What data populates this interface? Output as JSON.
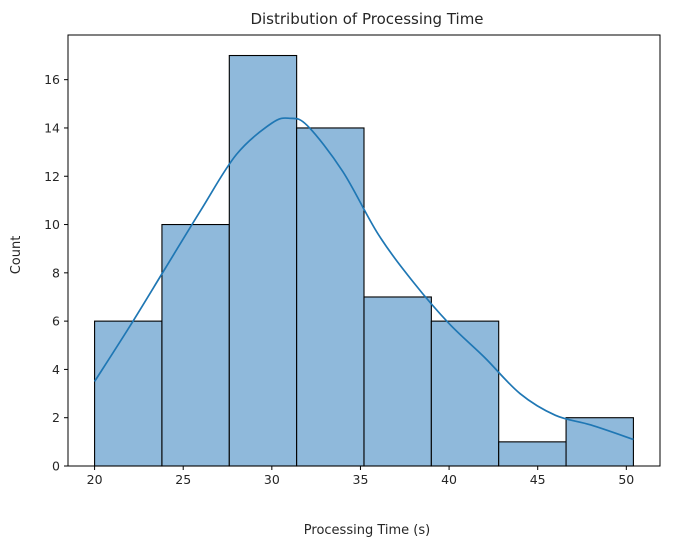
{
  "chart_data": {
    "type": "bar",
    "title": "Distribution of Processing Time",
    "xlabel": "Processing Time (s)",
    "ylabel": "Count",
    "bins": [
      {
        "start": 20.0,
        "end": 23.8,
        "count": 6
      },
      {
        "start": 23.8,
        "end": 27.6,
        "count": 10
      },
      {
        "start": 27.6,
        "end": 31.4,
        "count": 17
      },
      {
        "start": 31.4,
        "end": 35.2,
        "count": 14
      },
      {
        "start": 35.2,
        "end": 39.0,
        "count": 7
      },
      {
        "start": 39.0,
        "end": 42.8,
        "count": 6
      },
      {
        "start": 42.8,
        "end": 46.6,
        "count": 1
      },
      {
        "start": 46.6,
        "end": 50.4,
        "count": 2
      }
    ],
    "kde": {
      "x": [
        20,
        22,
        24,
        26,
        28,
        30,
        31,
        32,
        34,
        36,
        38,
        40,
        42,
        44,
        46,
        48,
        50.4
      ],
      "y": [
        3.5,
        5.8,
        8.2,
        10.6,
        12.9,
        14.2,
        14.4,
        14.1,
        12.2,
        9.6,
        7.6,
        5.9,
        4.5,
        3.0,
        2.1,
        1.7,
        1.1
      ]
    },
    "xlim": [
      18.5,
      51.9
    ],
    "ylim": [
      0,
      17.85
    ],
    "xticks": [
      "20",
      "25",
      "30",
      "35",
      "40",
      "45",
      "50"
    ],
    "yticks": [
      "0",
      "2",
      "4",
      "6",
      "8",
      "10",
      "12",
      "14",
      "16"
    ],
    "bar_color": "#8fb9db",
    "edge_color": "#000000",
    "kde_color": "#1f77b4",
    "grid": false,
    "legend": "none"
  }
}
